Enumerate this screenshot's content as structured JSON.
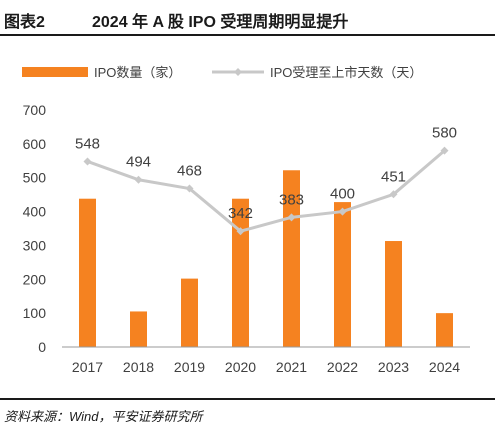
{
  "figure": {
    "label": "图表2",
    "title": "2024 年 A 股 IPO 受理周期明显提升",
    "source": "资料来源：Wind，平安证券研究所"
  },
  "colors": {
    "bar": "#F58220",
    "line": "#C8C8C8",
    "text": "#404040"
  },
  "chart_data": {
    "type": "bar",
    "categories": [
      "2017",
      "2018",
      "2019",
      "2020",
      "2021",
      "2022",
      "2023",
      "2024"
    ],
    "series": [
      {
        "name": "IPO数量（家）",
        "type": "bar",
        "values": [
          438,
          105,
          202,
          438,
          522,
          428,
          313,
          100
        ]
      },
      {
        "name": "IPO受理至上市天数（天）",
        "type": "line",
        "values": [
          548,
          494,
          468,
          342,
          383,
          400,
          451,
          580
        ],
        "labels": [
          "548",
          "494",
          "468",
          "342",
          "383",
          "400",
          "451",
          "580"
        ]
      }
    ],
    "yticks": [
      "0",
      "100",
      "200",
      "300",
      "400",
      "500",
      "600",
      "700"
    ],
    "ylim": [
      0,
      700
    ],
    "grid": false,
    "legend": "top"
  }
}
